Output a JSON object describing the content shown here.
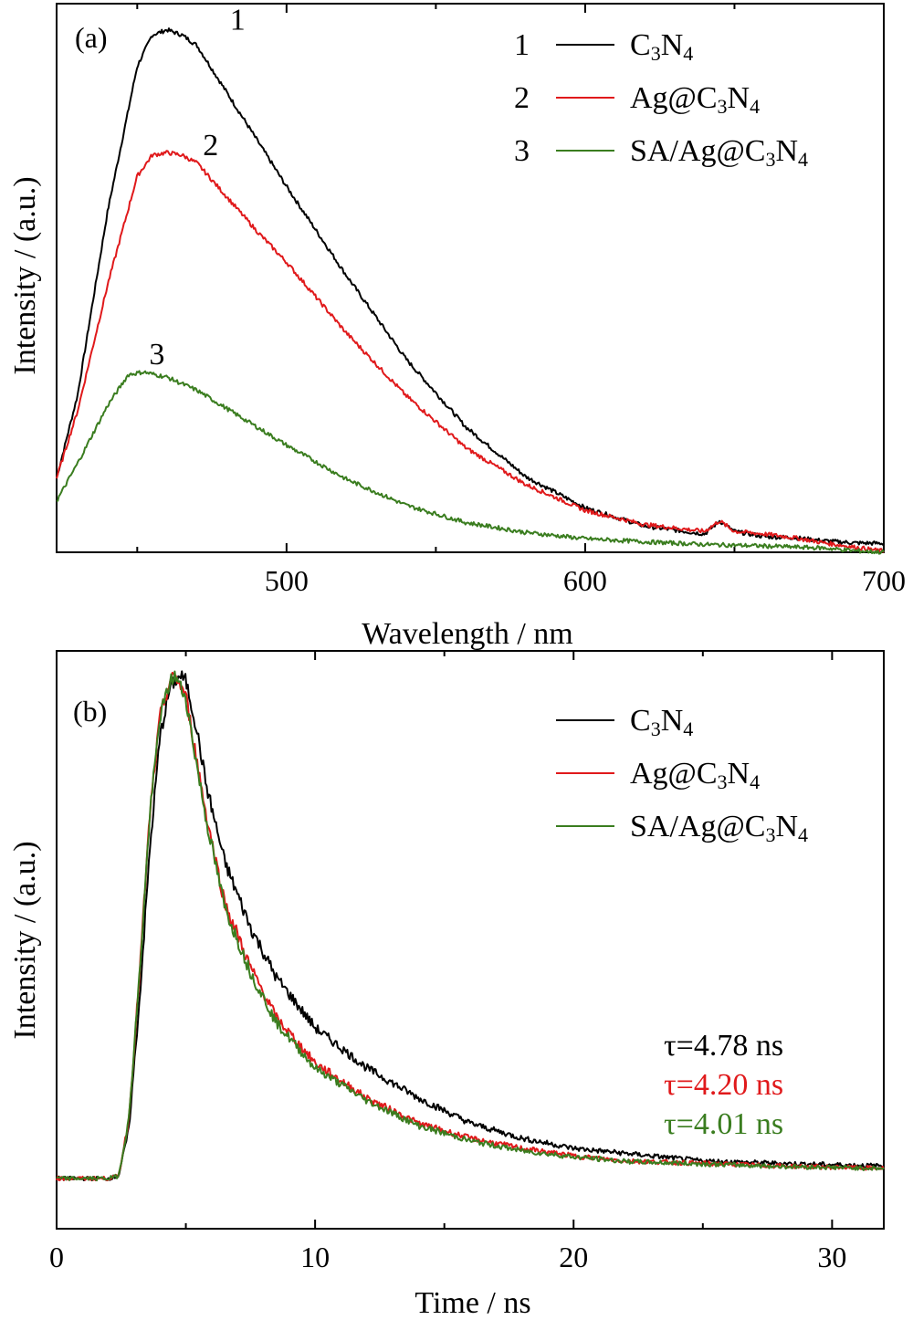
{
  "colors": {
    "black": "#000000",
    "red": "#e0191b",
    "green": "#3a7d1f"
  },
  "chart_data": [
    {
      "type": "line",
      "panel": "(a)",
      "xlabel": "Wavelength / nm",
      "ylabel": "Intensity / (a.u.)",
      "xlim": [
        423,
        700
      ],
      "ylim": [
        0,
        1.05
      ],
      "x_ticks": [
        500,
        600,
        700
      ],
      "y_ticks_shown": false,
      "legend_position": "top-right",
      "series": [
        {
          "name": "C3N4",
          "legend_number": "1",
          "legend_base": "C",
          "legend_sub1": "3",
          "legend_mid": "N",
          "legend_sub2": "4",
          "legend_prefix": "",
          "curve_label": "1",
          "curve_label_at": [
            481,
            1.0
          ],
          "color": "#000000",
          "x": [
            423,
            430,
            440,
            450,
            455,
            460,
            465,
            470,
            480,
            490,
            500,
            520,
            540,
            560,
            580,
            600,
            620,
            640,
            645,
            650,
            660,
            670,
            680,
            690,
            700
          ],
          "y": [
            0.142,
            0.3,
            0.65,
            0.93,
            0.99,
            1.0,
            0.99,
            0.97,
            0.88,
            0.79,
            0.7,
            0.53,
            0.37,
            0.24,
            0.145,
            0.085,
            0.05,
            0.035,
            0.06,
            0.04,
            0.03,
            0.028,
            0.022,
            0.018,
            0.017
          ]
        },
        {
          "name": "Ag@C3N4",
          "legend_number": "2",
          "legend_base": "C",
          "legend_sub1": "3",
          "legend_mid": "N",
          "legend_sub2": "4",
          "legend_prefix": "Ag@",
          "curve_label": "2",
          "curve_label_at": [
            472,
            0.76
          ],
          "color": "#e0191b",
          "x": [
            423,
            430,
            440,
            450,
            455,
            460,
            465,
            470,
            480,
            490,
            500,
            520,
            540,
            560,
            580,
            600,
            620,
            640,
            645,
            650,
            660,
            670,
            680,
            690,
            700
          ],
          "y": [
            0.142,
            0.27,
            0.51,
            0.72,
            0.76,
            0.765,
            0.76,
            0.745,
            0.68,
            0.615,
            0.555,
            0.42,
            0.3,
            0.2,
            0.13,
            0.08,
            0.053,
            0.04,
            0.06,
            0.04,
            0.035,
            0.028,
            0.018,
            0.01,
            0.002
          ]
        },
        {
          "name": "SA/Ag@C3N4",
          "legend_number": "3",
          "legend_base": "C",
          "legend_sub1": "3",
          "legend_mid": "N",
          "legend_sub2": "4",
          "legend_prefix": "SA/Ag@",
          "curve_label": "3",
          "curve_label_at": [
            454,
            0.36
          ],
          "color": "#3a7d1f",
          "x": [
            423,
            430,
            440,
            447,
            452,
            460,
            470,
            480,
            490,
            500,
            520,
            540,
            560,
            580,
            600,
            620,
            640,
            660,
            680,
            690,
            700
          ],
          "y": [
            0.098,
            0.17,
            0.28,
            0.34,
            0.345,
            0.335,
            0.31,
            0.275,
            0.24,
            0.205,
            0.14,
            0.09,
            0.057,
            0.038,
            0.026,
            0.02,
            0.015,
            0.012,
            0.008,
            0.003,
            0.0
          ]
        }
      ]
    },
    {
      "type": "line",
      "panel": "(b)",
      "xlabel": "Time / ns",
      "ylabel": "Intensity / (a.u.)",
      "xlim": [
        0,
        32
      ],
      "ylim": [
        -0.1,
        1.05
      ],
      "x_ticks": [
        0,
        10,
        20,
        30
      ],
      "y_ticks_shown": false,
      "legend_position": "top-right",
      "annotations": [
        {
          "text": "τ=4.78 ns",
          "color": "#000000"
        },
        {
          "text": "τ=4.20 ns",
          "color": "#e0191b"
        },
        {
          "text": "τ=4.01 ns",
          "color": "#3a7d1f"
        }
      ],
      "series": [
        {
          "name": "C3N4",
          "legend_prefix": "",
          "legend_base": "C",
          "legend_sub1": "3",
          "legend_mid": "N",
          "legend_sub2": "4",
          "color": "#000000",
          "x": [
            0,
            1,
            2,
            2.4,
            2.8,
            3.2,
            3.6,
            4.0,
            4.4,
            4.8,
            5.0,
            5.4,
            5.8,
            6.5,
            7.5,
            8.5,
            10,
            12,
            14,
            16,
            18,
            20,
            22,
            25,
            28,
            32
          ],
          "y": [
            0.0,
            0.0,
            0.0,
            0.005,
            0.1,
            0.35,
            0.65,
            0.88,
            0.98,
            1.0,
            0.99,
            0.9,
            0.78,
            0.63,
            0.5,
            0.4,
            0.3,
            0.22,
            0.16,
            0.11,
            0.08,
            0.06,
            0.05,
            0.035,
            0.03,
            0.025
          ]
        },
        {
          "name": "Ag@C3N4",
          "legend_prefix": "Ag@",
          "legend_base": "C",
          "legend_sub1": "3",
          "legend_mid": "N",
          "legend_sub2": "4",
          "color": "#e0191b",
          "x": [
            0,
            1,
            2,
            2.4,
            2.8,
            3.2,
            3.6,
            4.0,
            4.4,
            4.6,
            5.0,
            5.4,
            5.8,
            6.5,
            7.5,
            8.5,
            10,
            12,
            14,
            16,
            18,
            20,
            22,
            25,
            28,
            32
          ],
          "y": [
            0.0,
            0.0,
            0.0,
            0.005,
            0.12,
            0.4,
            0.72,
            0.92,
            0.99,
            1.0,
            0.96,
            0.84,
            0.72,
            0.55,
            0.42,
            0.32,
            0.23,
            0.16,
            0.11,
            0.08,
            0.06,
            0.045,
            0.035,
            0.03,
            0.025,
            0.02
          ]
        },
        {
          "name": "SA/Ag@C3N4",
          "legend_prefix": "SA/Ag@",
          "legend_base": "C",
          "legend_sub1": "3",
          "legend_mid": "N",
          "legend_sub2": "4",
          "color": "#3a7d1f",
          "x": [
            0,
            1,
            2,
            2.4,
            2.8,
            3.2,
            3.6,
            4.0,
            4.4,
            4.6,
            5.0,
            5.4,
            5.8,
            6.5,
            7.5,
            8.5,
            10,
            12,
            14,
            16,
            18,
            20,
            22,
            25,
            28,
            32
          ],
          "y": [
            0.0,
            0.0,
            0.0,
            0.005,
            0.12,
            0.4,
            0.72,
            0.92,
            0.99,
            1.0,
            0.955,
            0.83,
            0.71,
            0.54,
            0.41,
            0.31,
            0.22,
            0.155,
            0.105,
            0.075,
            0.055,
            0.043,
            0.034,
            0.029,
            0.024,
            0.02
          ]
        }
      ]
    }
  ]
}
